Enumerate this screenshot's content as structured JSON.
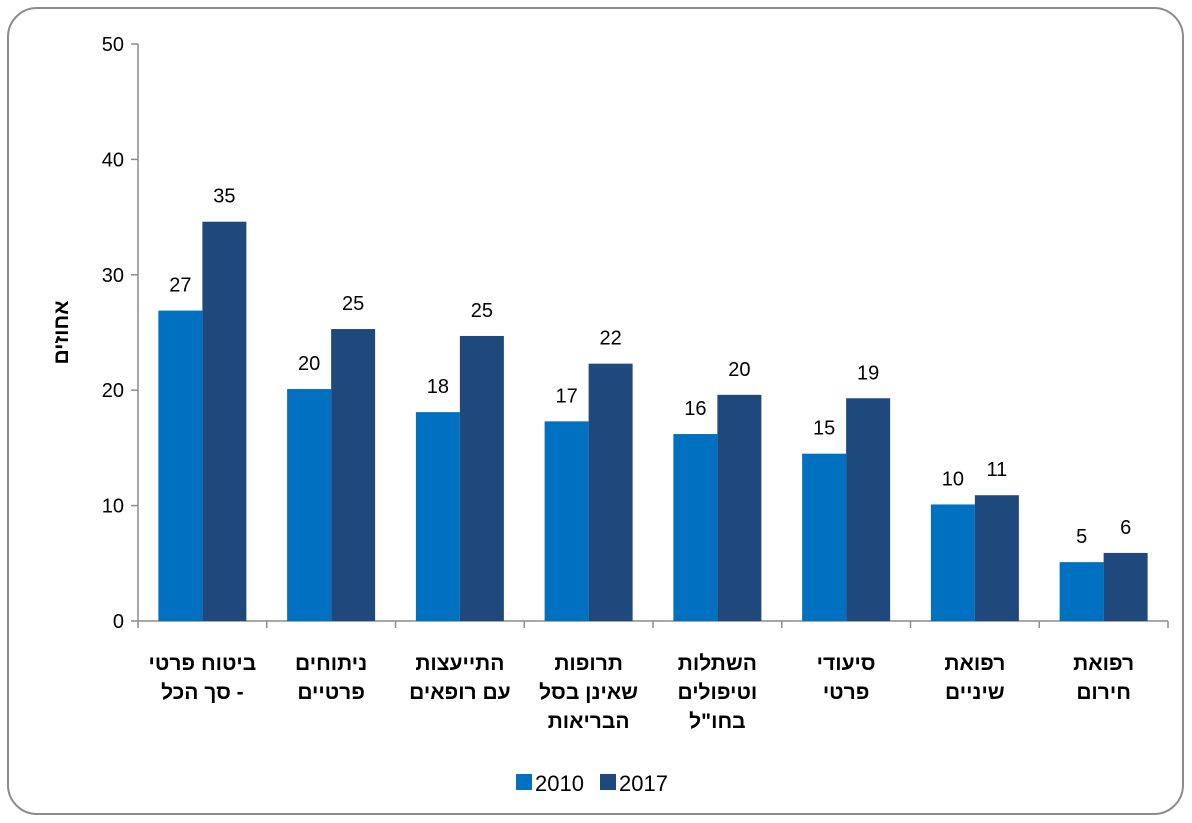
{
  "chart_data": {
    "type": "bar",
    "ylabel": "אחוזים",
    "ylim": [
      0,
      50
    ],
    "yticks": [
      0,
      10,
      20,
      30,
      40,
      50
    ],
    "grid": false,
    "legend_position": "bottom",
    "categories": [
      [
        "ביטוח פרטי",
        "- סך הכל"
      ],
      [
        "ניתוחים",
        "פרטיים"
      ],
      [
        "התייעצות",
        "עם רופאים"
      ],
      [
        "תרופות",
        "שאינן בסל",
        "הבריאות"
      ],
      [
        "השתלות",
        "וטיפולים",
        "בחו\"ל"
      ],
      [
        "סיעודי",
        "פרטי"
      ],
      [
        "רפואת",
        "שיניים"
      ],
      [
        "רפואת",
        "חירום"
      ]
    ],
    "series": [
      {
        "name": "2010",
        "color": "#0070c0",
        "values": [
          26.9,
          20.1,
          18.1,
          17.3,
          16.2,
          14.5,
          10.1,
          5.1
        ],
        "labels": [
          "27",
          "20",
          "18",
          "17",
          "16",
          "15",
          "10",
          "5"
        ]
      },
      {
        "name": "2017",
        "color": "#1f497d",
        "values": [
          34.6,
          25.3,
          24.7,
          22.3,
          19.6,
          19.3,
          10.9,
          5.9
        ],
        "labels": [
          "35",
          "25",
          "25",
          "22",
          "20",
          "19",
          "11",
          "6"
        ]
      }
    ]
  }
}
